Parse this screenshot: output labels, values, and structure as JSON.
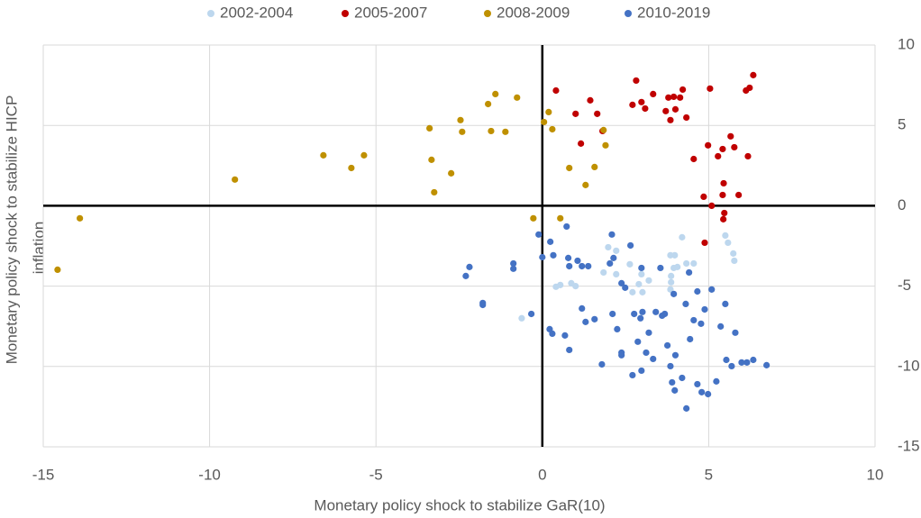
{
  "chart_data": {
    "type": "scatter",
    "x_label": "Monetary policy shock to stabilize GaR(10)",
    "y_label": [
      "Monetary policy shock to stabilize HICP",
      "inflation"
    ],
    "xlim": [
      -15,
      10
    ],
    "ylim": [
      -15,
      10
    ],
    "xticks": [
      -15,
      -10,
      -5,
      0,
      5,
      10
    ],
    "yticks": [
      -15,
      -10,
      -5,
      0,
      5,
      10
    ],
    "grid": true,
    "legend": "top",
    "series": [
      {
        "name": "2002-2004",
        "color": "#bdd7ee",
        "x": [
          -0.62,
          0.41,
          0.54,
          0.87,
          1.0,
          1.98,
          2.22,
          1.84,
          2.22,
          2.63,
          2.71,
          3.01,
          2.98,
          3.2,
          3.85,
          3.98,
          3.95,
          4.06,
          4.2,
          3.87,
          3.87,
          4.33,
          4.55,
          5.5,
          5.58,
          5.74,
          5.77,
          3.85,
          2.9
        ],
        "values": [
          -7.0,
          -5.04,
          -4.93,
          -4.82,
          -5.0,
          -2.58,
          -2.8,
          -4.15,
          -4.26,
          -3.64,
          -5.38,
          -5.38,
          -4.26,
          -4.65,
          -3.08,
          -3.08,
          -3.87,
          -3.81,
          -1.96,
          -4.37,
          -4.76,
          -3.59,
          -3.59,
          -1.85,
          -2.3,
          -2.97,
          -3.42,
          -5.21,
          -4.88
        ]
      },
      {
        "name": "2005-2007",
        "color": "#c00000",
        "x": [
          0.41,
          1.0,
          1.16,
          1.44,
          1.65,
          1.81,
          2.82,
          2.71,
          2.98,
          3.09,
          3.33,
          3.71,
          3.79,
          3.85,
          3.95,
          4.0,
          4.14,
          4.22,
          4.33,
          4.55,
          5.04,
          4.98,
          4.88,
          4.85,
          5.09,
          5.28,
          5.42,
          5.47,
          5.44,
          5.42,
          5.45,
          5.66,
          5.77,
          5.9,
          6.12,
          6.23,
          6.34,
          6.18
        ],
        "values": [
          7.17,
          5.72,
          3.87,
          6.56,
          5.72,
          4.65,
          7.79,
          6.28,
          6.45,
          6.05,
          6.95,
          5.89,
          6.73,
          5.33,
          6.78,
          6.0,
          6.73,
          7.23,
          5.49,
          2.91,
          7.29,
          3.76,
          -2.3,
          0.56,
          0.0,
          3.08,
          3.53,
          -0.45,
          -0.84,
          0.67,
          1.4,
          4.32,
          3.64,
          0.67,
          7.17,
          7.34,
          8.13,
          3.08
        ]
      },
      {
        "name": "2008-2009",
        "color": "#bf9000",
        "x": [
          -14.57,
          -13.9,
          -9.24,
          -6.58,
          -5.74,
          -5.36,
          -3.39,
          -3.33,
          -3.25,
          -2.46,
          -2.41,
          -2.74,
          -1.63,
          -1.41,
          -1.54,
          -1.11,
          -0.76,
          -0.27,
          0.05,
          0.19,
          0.3,
          0.54,
          0.81,
          1.3,
          1.57,
          1.84,
          1.9
        ],
        "values": [
          -3.98,
          -0.78,
          1.63,
          3.14,
          2.35,
          3.14,
          4.82,
          2.86,
          0.84,
          5.33,
          4.6,
          2.02,
          6.33,
          6.95,
          4.65,
          4.6,
          6.73,
          -0.78,
          5.21,
          5.83,
          4.76,
          -0.78,
          2.35,
          1.29,
          2.41,
          4.71,
          3.76
        ]
      },
      {
        "name": "2010-2019",
        "color": "#4472c4",
        "x": [
          -0.11,
          0.24,
          0.73,
          0.0,
          0.33,
          -2.19,
          -2.3,
          -0.87,
          -0.87,
          -1.79,
          -1.79,
          -0.33,
          0.22,
          0.3,
          0.68,
          0.81,
          0.78,
          0.81,
          1.06,
          1.19,
          1.38,
          1.3,
          1.19,
          1.57,
          1.79,
          2.09,
          2.14,
          2.03,
          2.11,
          2.25,
          2.38,
          2.49,
          2.65,
          2.38,
          2.71,
          2.76,
          2.87,
          2.95,
          3.01,
          2.98,
          3.12,
          3.2,
          3.33,
          3.41,
          3.6,
          3.68,
          3.76,
          3.85,
          3.95,
          4.0,
          3.9,
          3.98,
          4.2,
          4.33,
          4.44,
          4.55,
          4.66,
          4.77,
          4.88,
          4.98,
          5.09,
          5.23,
          5.36,
          5.5,
          5.53,
          5.69,
          5.8,
          5.99,
          6.15,
          6.34,
          6.74,
          2.98,
          3.55,
          4.41,
          4.31,
          2.38,
          4.66,
          4.79
        ],
        "values": [
          -1.79,
          -2.24,
          -1.29,
          -3.2,
          -3.08,
          -3.81,
          -4.37,
          -3.59,
          -3.92,
          -6.05,
          -6.17,
          -6.73,
          -7.68,
          -7.96,
          -8.07,
          -8.97,
          -3.25,
          -3.76,
          -3.42,
          -3.76,
          -3.76,
          -7.23,
          -6.39,
          -7.06,
          -9.87,
          -1.79,
          -3.25,
          -3.59,
          -6.73,
          -7.68,
          -4.82,
          -5.1,
          -2.47,
          -9.3,
          -10.54,
          -6.73,
          -8.46,
          -7.0,
          -6.61,
          -10.26,
          -9.14,
          -7.9,
          -9.53,
          -6.61,
          -6.84,
          -6.73,
          -8.69,
          -9.98,
          -5.49,
          -9.3,
          -10.99,
          -11.49,
          -10.71,
          -12.61,
          -8.3,
          -7.12,
          -5.33,
          -7.34,
          -6.45,
          -11.72,
          -5.21,
          -10.93,
          -7.51,
          -6.11,
          -9.59,
          -9.98,
          -7.9,
          -9.75,
          -9.75,
          -9.59,
          -9.92,
          -3.87,
          -3.87,
          -4.15,
          -6.11,
          -9.14,
          -11.1,
          -11.6
        ]
      }
    ]
  }
}
